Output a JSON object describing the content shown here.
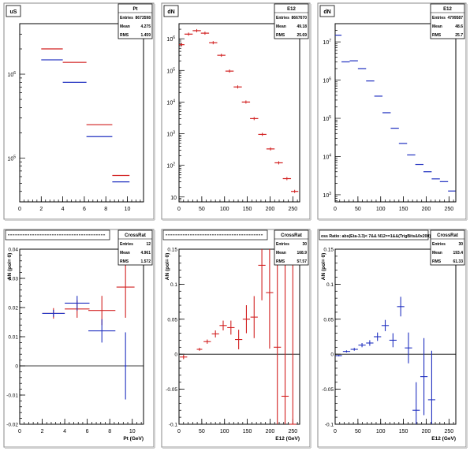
{
  "chart_data": [
    {
      "type": "histogram",
      "corner_label": "uS",
      "stats": {
        "title": "Pt",
        "rows": [
          [
            "Entries",
            "8673598"
          ],
          [
            "Mean",
            "4.275"
          ],
          [
            "RMS",
            "1.459"
          ]
        ]
      },
      "xlim": [
        0,
        11.5
      ],
      "xticks": [
        "0",
        "2",
        "4",
        "6",
        "8",
        "10"
      ],
      "ylog": true,
      "ylim": [
        30000,
        4000000
      ],
      "yticks": [
        {
          "label": "10",
          "sup": "6",
          "value": 1000000
        },
        {
          "label": "10",
          "sup": "5",
          "value": 100000
        }
      ],
      "series": [
        {
          "color": "#d22020",
          "values": [
            {
              "x0": 2,
              "x1": 4,
              "y": 2000000
            },
            {
              "x0": 4,
              "x1": 6.2,
              "y": 1380000
            },
            {
              "x0": 6.2,
              "x1": 8.6,
              "y": 250000
            },
            {
              "x0": 8.6,
              "x1": 10.2,
              "y": 62000
            }
          ]
        },
        {
          "color": "#2030c0",
          "values": [
            {
              "x0": 2,
              "x1": 4,
              "y": 1480000
            },
            {
              "x0": 4,
              "x1": 6.2,
              "y": 800000
            },
            {
              "x0": 6.2,
              "x1": 8.6,
              "y": 180000
            },
            {
              "x0": 8.6,
              "x1": 10.2,
              "y": 52000
            }
          ]
        }
      ]
    },
    {
      "type": "histogram",
      "corner_label": "dN",
      "stats": {
        "title": "E12",
        "rows": [
          [
            "Entries",
            "8667670"
          ],
          [
            "Mean",
            "49.18"
          ],
          [
            "RMS",
            "25.69"
          ]
        ]
      },
      "xlim": [
        0,
        265
      ],
      "xticks": [
        "0",
        "50",
        "100",
        "150",
        "200",
        "250"
      ],
      "ylog": true,
      "ylim": [
        7,
        3000000
      ],
      "yticks": [
        {
          "label": "10",
          "sup": "6",
          "value": 1000000
        },
        {
          "label": "10",
          "sup": "5",
          "value": 100000
        },
        {
          "label": "10",
          "sup": "4",
          "value": 10000
        },
        {
          "label": "10",
          "sup": "3",
          "value": 1000
        },
        {
          "label": "10",
          "sup": "2",
          "value": 100
        },
        {
          "label": "10",
          "sup": "",
          "value": 10
        }
      ],
      "series": [
        {
          "color": "#d22020",
          "values": [
            {
              "x0": 0,
              "x1": 12,
              "y": 650000
            },
            {
              "x0": 12,
              "x1": 30,
              "y": 1400000
            },
            {
              "x0": 30,
              "x1": 48,
              "y": 1800000
            },
            {
              "x0": 48,
              "x1": 66,
              "y": 1500000
            },
            {
              "x0": 66,
              "x1": 84,
              "y": 750000
            },
            {
              "x0": 84,
              "x1": 102,
              "y": 300000
            },
            {
              "x0": 102,
              "x1": 120,
              "y": 95000
            },
            {
              "x0": 120,
              "x1": 138,
              "y": 30000
            },
            {
              "x0": 138,
              "x1": 156,
              "y": 10000
            },
            {
              "x0": 156,
              "x1": 174,
              "y": 3000
            },
            {
              "x0": 174,
              "x1": 192,
              "y": 950
            },
            {
              "x0": 192,
              "x1": 210,
              "y": 330
            },
            {
              "x0": 210,
              "x1": 228,
              "y": 120
            },
            {
              "x0": 228,
              "x1": 246,
              "y": 38
            },
            {
              "x0": 246,
              "x1": 262,
              "y": 15
            }
          ]
        }
      ]
    },
    {
      "type": "histogram",
      "corner_label": "dN",
      "stats": {
        "title": "E12",
        "rows": [
          [
            "Entries",
            "4799587"
          ],
          [
            "Mean",
            "48.6"
          ],
          [
            "RMS",
            "25.7"
          ]
        ]
      },
      "xlim": [
        0,
        265
      ],
      "xticks": [
        "0",
        "50",
        "100",
        "150",
        "200",
        "250"
      ],
      "ylog": true,
      "ylim": [
        650,
        30000000
      ],
      "yticks": [
        {
          "label": "10",
          "sup": "7",
          "value": 10000000
        },
        {
          "label": "10",
          "sup": "6",
          "value": 1000000
        },
        {
          "label": "10",
          "sup": "5",
          "value": 100000
        },
        {
          "label": "10",
          "sup": "4",
          "value": 10000
        },
        {
          "label": "10",
          "sup": "3",
          "value": 1000
        }
      ],
      "series": [
        {
          "color": "#2030c0",
          "values": [
            {
              "x0": 0,
              "x1": 14,
              "y": 15000000
            },
            {
              "x0": 14,
              "x1": 32,
              "y": 3000000
            },
            {
              "x0": 32,
              "x1": 50,
              "y": 3200000
            },
            {
              "x0": 50,
              "x1": 68,
              "y": 2000000
            },
            {
              "x0": 68,
              "x1": 86,
              "y": 950000
            },
            {
              "x0": 86,
              "x1": 104,
              "y": 380000
            },
            {
              "x0": 104,
              "x1": 122,
              "y": 140000
            },
            {
              "x0": 122,
              "x1": 140,
              "y": 55000
            },
            {
              "x0": 140,
              "x1": 158,
              "y": 22000
            },
            {
              "x0": 158,
              "x1": 176,
              "y": 11000
            },
            {
              "x0": 176,
              "x1": 194,
              "y": 6200
            },
            {
              "x0": 194,
              "x1": 212,
              "y": 4000
            },
            {
              "x0": 212,
              "x1": 230,
              "y": 2600
            },
            {
              "x0": 230,
              "x1": 248,
              "y": 2200
            },
            {
              "x0": 248,
              "x1": 264,
              "y": 1250
            }
          ]
        }
      ]
    },
    {
      "type": "errorbar",
      "title": "",
      "stats": {
        "title": "CrossRat",
        "rows": [
          [
            "Entries",
            "12"
          ],
          [
            "Mean",
            "4.961"
          ],
          [
            "RMS",
            "1.572"
          ]
        ]
      },
      "ylabel": "AN (pol= 0)",
      "xlabel": "Pt (GeV)",
      "xlim": [
        0,
        11
      ],
      "ylim": [
        -0.02,
        0.04
      ],
      "xticks": [
        "0",
        "2",
        "4",
        "6",
        "8",
        "10"
      ],
      "yticks": [
        "-0.02",
        "-0.01",
        "0",
        "0.01",
        "0.02",
        "0.03",
        "0.04"
      ],
      "series": [
        {
          "color": "#d22020",
          "points": [
            {
              "x": 3,
              "y": 0.018,
              "xerr": 1,
              "yerr": 0.0018
            },
            {
              "x": 5.1,
              "y": 0.0195,
              "xerr": 1.1,
              "yerr": 0.003
            },
            {
              "x": 7.3,
              "y": 0.019,
              "xerr": 1.2,
              "yerr": 0.005
            },
            {
              "x": 9.4,
              "y": 0.027,
              "xerr": 0.8,
              "yerr": 0.0105
            }
          ]
        },
        {
          "color": "#2030c0",
          "points": [
            {
              "x": 3,
              "y": 0.018,
              "xerr": 1,
              "yerr": 0.0012
            },
            {
              "x": 5.1,
              "y": 0.0215,
              "xerr": 1.1,
              "yerr": 0.0025
            },
            {
              "x": 7.3,
              "y": 0.012,
              "xerr": 1.2,
              "yerr": 0.004
            },
            {
              "x": 9.4,
              "y": 0,
              "xerr": 0.1,
              "yerr": 0.0115
            }
          ]
        }
      ]
    },
    {
      "type": "errorbar",
      "title": "",
      "stats": {
        "title": "CrossRat",
        "rows": [
          [
            "Entries",
            "30"
          ],
          [
            "Mean",
            "168.9"
          ],
          [
            "RMS",
            "57.57"
          ]
        ]
      },
      "ylabel": "AN (pol= 0)",
      "xlabel": "E12 (GeV)",
      "xlim": [
        0,
        265
      ],
      "ylim": [
        -0.1,
        0.15
      ],
      "xticks": [
        "0",
        "50",
        "100",
        "150",
        "200",
        "250"
      ],
      "yticks": [
        "-0.1",
        "-0.05",
        "0",
        "0.05",
        "0.1",
        "0.15"
      ],
      "series": [
        {
          "color": "#d22020",
          "points": [
            {
              "x": 10,
              "y": -0.004,
              "xerr": 8,
              "yerr": 0.003
            },
            {
              "x": 30,
              "y": 0,
              "xerr": 0,
              "yerr": 0
            },
            {
              "x": 45,
              "y": 0.007,
              "xerr": 6,
              "yerr": 0.002
            },
            {
              "x": 62,
              "y": 0.018,
              "xerr": 8,
              "yerr": 0.003
            },
            {
              "x": 80,
              "y": 0.029,
              "xerr": 8,
              "yerr": 0.005
            },
            {
              "x": 97,
              "y": 0.041,
              "xerr": 8,
              "yerr": 0.007
            },
            {
              "x": 114,
              "y": 0.038,
              "xerr": 8,
              "yerr": 0.01
            },
            {
              "x": 131,
              "y": 0.021,
              "xerr": 8,
              "yerr": 0.014
            },
            {
              "x": 148,
              "y": 0.05,
              "xerr": 8,
              "yerr": 0.02
            },
            {
              "x": 165,
              "y": 0.053,
              "xerr": 8,
              "yerr": 0.03
            },
            {
              "x": 182,
              "y": 0.127,
              "xerr": 8,
              "yerr": 0.05
            },
            {
              "x": 199,
              "y": 0.088,
              "xerr": 8,
              "yerr": 0.08
            },
            {
              "x": 216,
              "y": 0.01,
              "xerr": 8,
              "yerr": 0.14
            },
            {
              "x": 233,
              "y": -0.06,
              "xerr": 8,
              "yerr": 0.2
            },
            {
              "x": 250,
              "y": -0.1,
              "xerr": 8,
              "yerr": 0.3
            }
          ]
        }
      ]
    },
    {
      "type": "errorbar",
      "title": "oss Ratio: abs(Eta-3.3)< 7&& N12==1&&(TrigBits&0x200)",
      "stats": {
        "title": "CrossRat",
        "rows": [
          [
            "Entries",
            "30"
          ],
          [
            "Mean",
            "193.4"
          ],
          [
            "RMS",
            "61.33"
          ]
        ]
      },
      "ylabel": "AN (pol= 0)",
      "xlabel": "E12 (GeV)",
      "xlim": [
        0,
        265
      ],
      "ylim": [
        -0.1,
        0.15
      ],
      "xticks": [
        "0",
        "50",
        "100",
        "150",
        "200",
        "250"
      ],
      "yticks": [
        "-0.1",
        "-0.05",
        "0",
        "0.05",
        "0.1",
        "0.15"
      ],
      "series": [
        {
          "color": "#2030c0",
          "points": [
            {
              "x": 8,
              "y": -0.002,
              "xerr": 7,
              "yerr": 0.001
            },
            {
              "x": 25,
              "y": 0.004,
              "xerr": 8,
              "yerr": 0.0015
            },
            {
              "x": 42,
              "y": 0.007,
              "xerr": 8,
              "yerr": 0.002
            },
            {
              "x": 59,
              "y": 0.013,
              "xerr": 8,
              "yerr": 0.003
            },
            {
              "x": 76,
              "y": 0.016,
              "xerr": 8,
              "yerr": 0.004
            },
            {
              "x": 93,
              "y": 0.025,
              "xerr": 8,
              "yerr": 0.006
            },
            {
              "x": 110,
              "y": 0.041,
              "xerr": 8,
              "yerr": 0.008
            },
            {
              "x": 127,
              "y": 0.02,
              "xerr": 8,
              "yerr": 0.01
            },
            {
              "x": 144,
              "y": 0.068,
              "xerr": 8,
              "yerr": 0.014
            },
            {
              "x": 161,
              "y": 0.009,
              "xerr": 8,
              "yerr": 0.022
            },
            {
              "x": 178,
              "y": -0.08,
              "xerr": 8,
              "yerr": 0.04
            },
            {
              "x": 195,
              "y": -0.032,
              "xerr": 8,
              "yerr": 0.055
            },
            {
              "x": 212,
              "y": -0.065,
              "xerr": 8,
              "yerr": 0.07
            }
          ]
        }
      ]
    }
  ]
}
